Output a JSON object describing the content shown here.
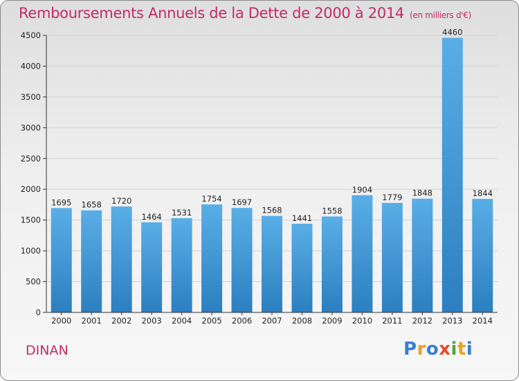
{
  "header": {
    "title": "Remboursements Annuels de la Dette de 2000 à 2014",
    "subtitle": "(en milliers d'€)"
  },
  "footer": {
    "city": "DINAN",
    "logo_text": "Proxiti"
  },
  "colors": {
    "title": "#c22a6a",
    "bar_top": "#5aaee6",
    "bar_bottom": "#2c7fc0",
    "grid": "#d2d2d2",
    "axis": "#333333",
    "logo_letters": [
      "#3a7fd0",
      "#e8a224",
      "#3a7fd0",
      "#e84a2a",
      "#4aaa3a",
      "#e8a224",
      "#3a7fd0"
    ]
  },
  "chart_data": {
    "type": "bar",
    "title": "Remboursements Annuels de la Dette de 2000 à 2014",
    "subtitle": "(en milliers d'€)",
    "categories": [
      "2000",
      "2001",
      "2002",
      "2003",
      "2004",
      "2005",
      "2006",
      "2007",
      "2008",
      "2009",
      "2010",
      "2011",
      "2012",
      "2013",
      "2014"
    ],
    "values": [
      1695,
      1658,
      1720,
      1464,
      1531,
      1754,
      1697,
      1568,
      1441,
      1558,
      1904,
      1779,
      1848,
      4460,
      1844
    ],
    "ylim": [
      0,
      4500
    ],
    "yticks": [
      0,
      500,
      1000,
      1500,
      2000,
      2500,
      3000,
      3500,
      4000,
      4500
    ],
    "grid": true,
    "data_labels": true,
    "xlabel": "",
    "ylabel": ""
  }
}
